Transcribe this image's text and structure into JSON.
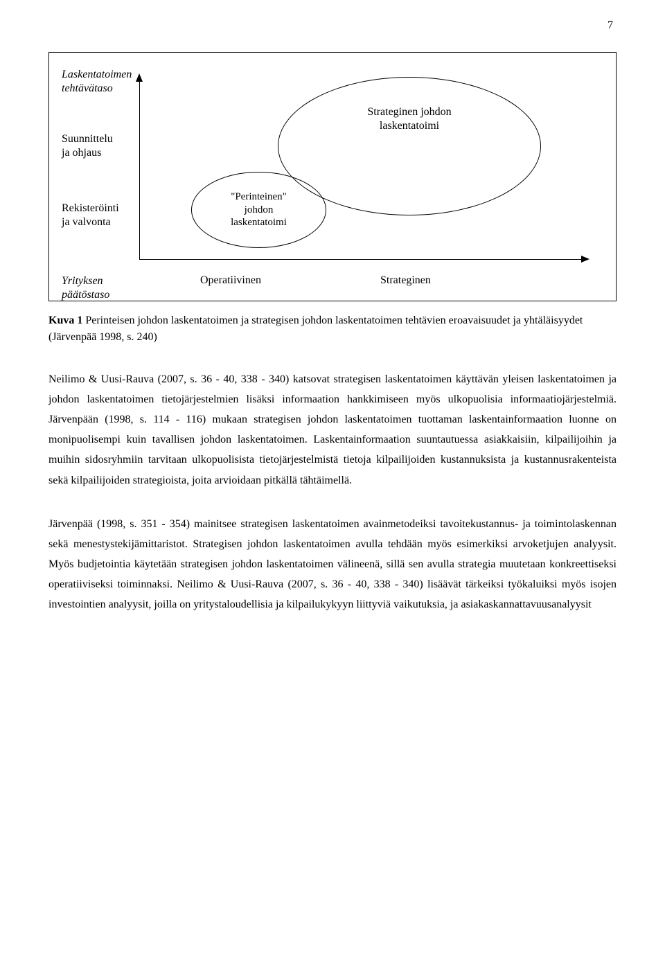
{
  "page": {
    "number": "7"
  },
  "diagram": {
    "y_axis_title_line1": "Laskentatoimen",
    "y_axis_title_line2": "tehtävätaso",
    "y_label_1_line1": "Suunnittelu",
    "y_label_1_line2": "ja ohjaus",
    "y_label_2_line1": "Rekisteröinti",
    "y_label_2_line2": "ja valvonta",
    "ellipse_big_line1": "Strateginen johdon",
    "ellipse_big_line2": "laskentatoimi",
    "ellipse_small_line1": "\"Perinteinen\"",
    "ellipse_small_line2": "johdon",
    "ellipse_small_line3": "laskentatoimi",
    "x_axis_title_line1": "Yrityksen",
    "x_axis_title_line2": "päätöstaso",
    "x_label_1": "Operatiivinen",
    "x_label_2": "Strateginen",
    "ellipse_big": {
      "stroke": "#000000",
      "fill": "none"
    },
    "ellipse_small": {
      "stroke": "#000000",
      "fill": "none"
    },
    "axis_color": "#000000"
  },
  "caption": {
    "bold": "Kuva 1",
    "rest": " Perinteisen johdon laskentatoimen ja strategisen johdon laskentatoimen tehtävien eroavaisuudet ja yhtäläisyydet (Järvenpää 1998, s. 240)"
  },
  "paragraphs": {
    "p1": "Neilimo & Uusi-Rauva (2007, s. 36 - 40, 338 - 340) katsovat strategisen laskentatoimen käyttävän yleisen laskentatoimen ja johdon laskentatoimen tietojärjestelmien lisäksi informaation hankkimiseen myös ulkopuolisia informaatiojärjestelmiä. Järvenpään (1998, s. 114 - 116) mukaan strategisen johdon laskentatoimen tuottaman laskentainformaation luonne on monipuolisempi kuin tavallisen johdon laskentatoimen. Laskentainformaation suuntautuessa asiakkaisiin, kilpailijoihin ja muihin sidosryhmiin tarvitaan ulkopuolisista tietojärjestelmistä tietoja kilpailijoiden kustannuksista ja kustannusrakenteista sekä kilpailijoiden strategioista, joita arvioidaan pitkällä tähtäimellä.",
    "p2": "Järvenpää (1998, s. 351 - 354) mainitsee strategisen laskentatoimen avainmetodeiksi tavoitekustannus- ja toimintolaskennan sekä menestystekijämittaristot. Strategisen johdon laskentatoimen avulla tehdään myös esimerkiksi arvoketjujen analyysit. Myös budjetointia käytetään strategisen johdon laskentatoimen välineenä, sillä sen avulla strategia muutetaan konkreettiseksi operatiiviseksi toiminnaksi. Neilimo & Uusi-Rauva (2007, s. 36 - 40, 338 - 340) lisäävät tärkeiksi työkaluiksi myös isojen investointien analyysit, joilla on yritystaloudellisia ja kilpailukykyyn liittyviä vaikutuksia, ja asiakaskannattavuusanalyysit"
  }
}
